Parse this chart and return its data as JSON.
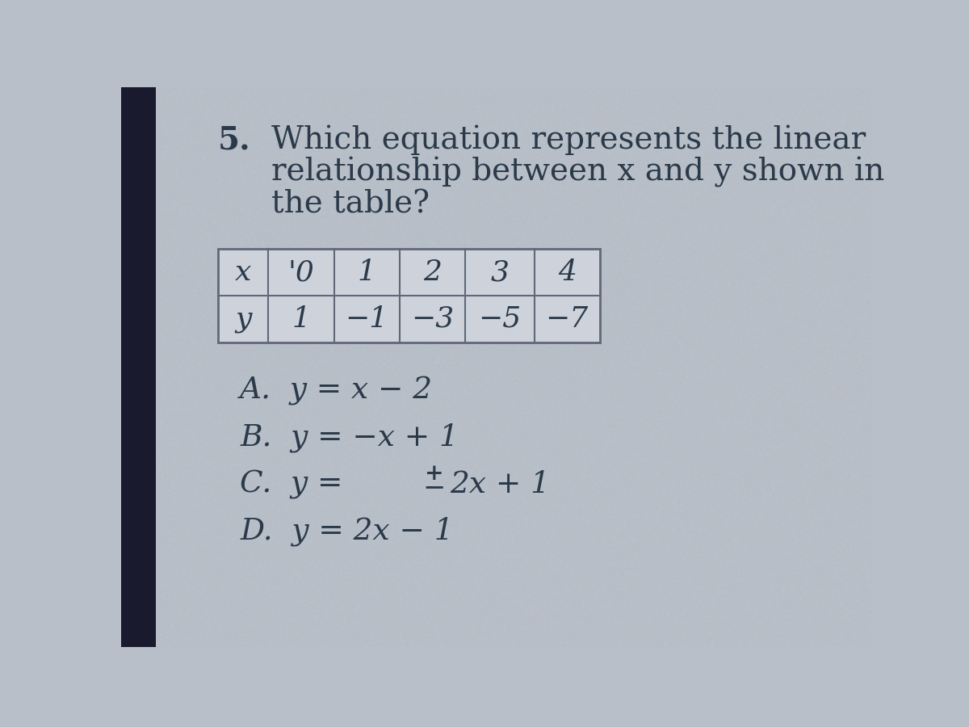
{
  "bg_color": "#b8bfc8",
  "left_strip_color": "#1a1a2e",
  "question_number": "5.",
  "question_text_line1": "Which equation represents the linear",
  "question_text_line2": "relationship between x and y shown in",
  "question_text_line3": "the table?",
  "table_x_header": "x",
  "table_y_header": "y",
  "table_x_values": [
    "'0",
    "1",
    "2",
    "3",
    "4"
  ],
  "table_y_values": [
    "1",
    "−1",
    "−3",
    "−5",
    "−7"
  ],
  "option_A": "A.  y = x − 2",
  "option_B": "B.  y = −x + 1",
  "option_D": "D.  y = 2x − 1",
  "text_color": "#2b3a4a",
  "table_border_color": "#606878",
  "table_bg": "#cdd2db"
}
